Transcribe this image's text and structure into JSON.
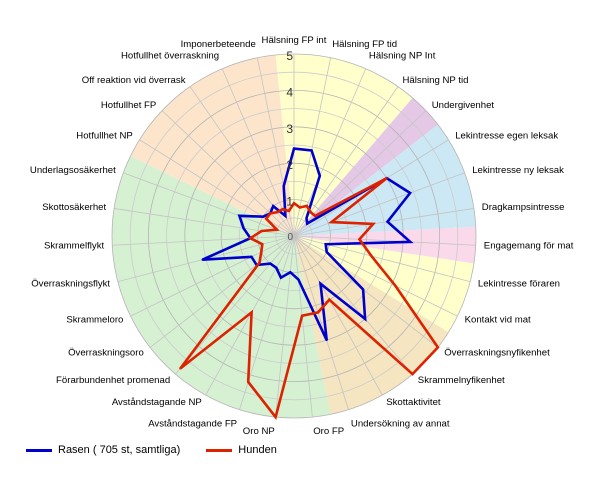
{
  "chart_data": {
    "type": "radar",
    "title": "",
    "rmax": 5,
    "ticks": [
      1,
      2,
      3,
      4,
      5
    ],
    "categories": [
      "Hälsning FP int",
      "Hälsning FP tid",
      "Hälsning NP Int",
      "Hälsning NP tid",
      "Undergivenhet",
      "Lekintresse egen leksak",
      "Lekintresse ny leksak",
      "Dragkampsintresse",
      "Engagemang för mat",
      "Lekintresse föraren",
      "Kontakt vid mat",
      "Överraskningsnyfikenhet",
      "Skrammelnyfikenhet",
      "Skottaktivitet",
      "Undersökning av annat",
      "Oro FP",
      "Oro NP",
      "Avståndstagande FP",
      "Avståndstagande NP",
      "Förarbundenhet promenad",
      "Överraskningsoro",
      "Skrammeloro",
      "Överraskningsflykt",
      "Skrammelflykt",
      "Skottosäkerhet",
      "Underlagsosäkerhet",
      "Hotfullhet NP",
      "Hotfullhet FP",
      "Off reaktion vid överrask",
      "Hotfullhet överraskning",
      "Imponerbeteende"
    ],
    "sectors": [
      {
        "from": 0,
        "to": 3,
        "color": "#ffffcc"
      },
      {
        "from": 4,
        "to": 4,
        "color": "#e4c8e6"
      },
      {
        "from": 5,
        "to": 7,
        "color": "#cce8f4"
      },
      {
        "from": 8,
        "to": 8,
        "color": "#f9d9ea"
      },
      {
        "from": 9,
        "to": 10,
        "color": "#ffffcc"
      },
      {
        "from": 11,
        "to": 14,
        "color": "#f5e5c0"
      },
      {
        "from": 15,
        "to": 25,
        "color": "#d6f0d2"
      },
      {
        "from": 26,
        "to": 30,
        "color": "#fde5cc"
      }
    ],
    "series": [
      {
        "name": "Rasen ( 705 st, samtliga)",
        "color": "#0000cc",
        "values": [
          2.4,
          2.4,
          1.8,
          0.6,
          0.5,
          3.0,
          3.4,
          2.6,
          3.2,
          0.9,
          1.0,
          2.4,
          3.0,
          1.5,
          3.0,
          1.2,
          1.0,
          1.2,
          1.0,
          1.0,
          1.3,
          1.3,
          2.6,
          1.2,
          1.4,
          1.6,
          1.0,
          0.9,
          1.0,
          0.6,
          1.4
        ]
      },
      {
        "name": "Hunden",
        "color": "#dd2200",
        "values": [
          0.9,
          0.8,
          0.9,
          0.8,
          0.8,
          3.0,
          1.1,
          2.2,
          1.8,
          2.2,
          3.1,
          5.0,
          5.0,
          2.0,
          2.2,
          2.2,
          5.0,
          4.2,
          2.4,
          4.8,
          1.2,
          1.0,
          0.9,
          1.2,
          0.9,
          0.5,
          0.9,
          0.9,
          0.8,
          0.8,
          0.7
        ]
      }
    ]
  }
}
